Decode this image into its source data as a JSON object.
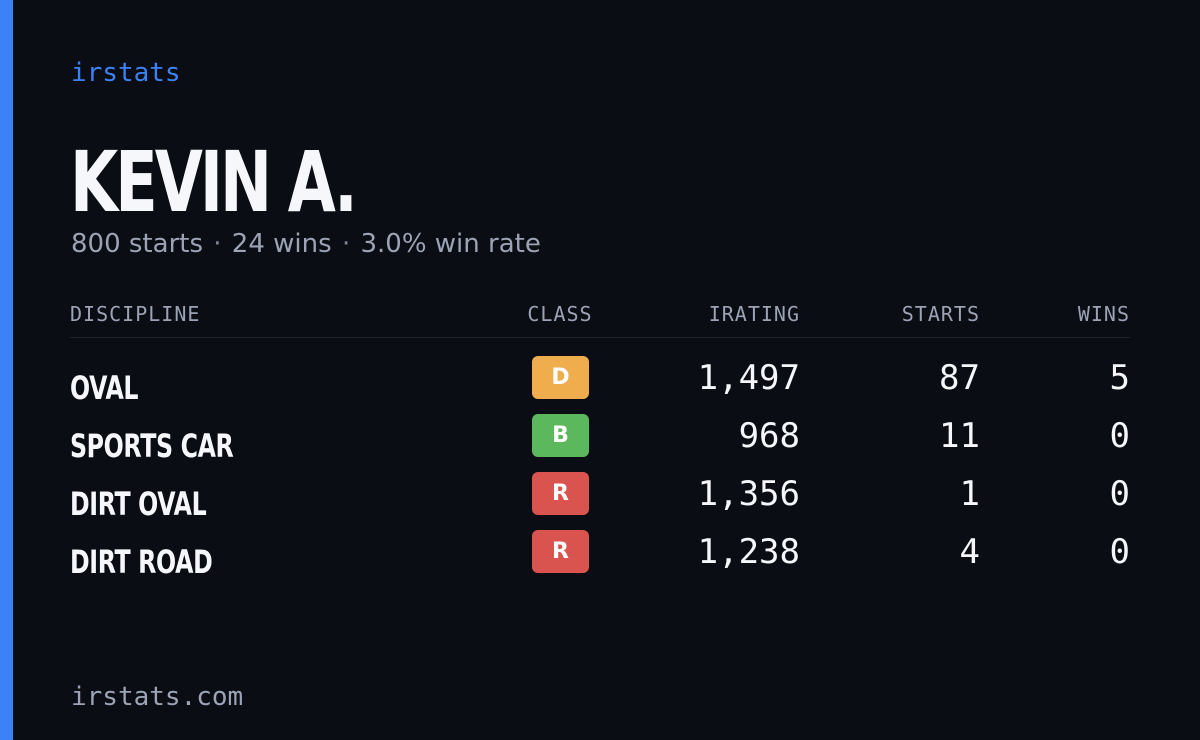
{
  "brand": "irstats",
  "driver": {
    "name": "KEVIN A.",
    "starts_text": "800 starts",
    "separator": "·",
    "wins_text": "24 wins",
    "win_rate_text": "3.0% win rate"
  },
  "table": {
    "headers": {
      "discipline": "DISCIPLINE",
      "class": "CLASS",
      "irating": "IRATING",
      "starts": "STARTS",
      "wins": "WINS"
    },
    "rows": [
      {
        "discipline": "OVAL",
        "class": "D",
        "class_color": "#f0ad4e",
        "irating": "1,497",
        "starts": "87",
        "wins": "5"
      },
      {
        "discipline": "SPORTS CAR",
        "class": "B",
        "class_color": "#5cb85c",
        "irating": "968",
        "starts": "11",
        "wins": "0"
      },
      {
        "discipline": "DIRT OVAL",
        "class": "R",
        "class_color": "#d9534f",
        "irating": "1,356",
        "starts": "1",
        "wins": "0"
      },
      {
        "discipline": "DIRT ROAD",
        "class": "R",
        "class_color": "#d9534f",
        "irating": "1,238",
        "starts": "4",
        "wins": "0"
      }
    ]
  },
  "footer": "irstats.com",
  "colors": {
    "background": "#0a0d14",
    "accent": "#3b82f6",
    "muted_text": "#9ba3b5"
  }
}
